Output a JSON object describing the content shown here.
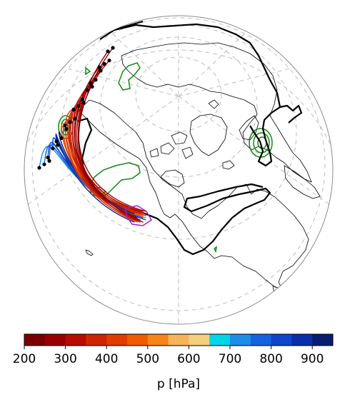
{
  "colorbar": {
    "label": "p [hPa]",
    "ticks": [
      200,
      300,
      400,
      500,
      600,
      700,
      800,
      900
    ],
    "range": [
      200,
      950
    ],
    "bins": [
      {
        "from": 200,
        "to": 250,
        "color": "#7a0000"
      },
      {
        "from": 250,
        "to": 300,
        "color": "#990000"
      },
      {
        "from": 300,
        "to": 350,
        "color": "#b80c00"
      },
      {
        "from": 350,
        "to": 400,
        "color": "#cf2400"
      },
      {
        "from": 400,
        "to": 450,
        "color": "#e03c00"
      },
      {
        "from": 450,
        "to": 500,
        "color": "#ef5a00"
      },
      {
        "from": 500,
        "to": 550,
        "color": "#f78418"
      },
      {
        "from": 550,
        "to": 600,
        "color": "#f5b45a"
      },
      {
        "from": 600,
        "to": 650,
        "color": "#f3cf7e"
      },
      {
        "from": 650,
        "to": 700,
        "color": "#00d5e6"
      },
      {
        "from": 700,
        "to": 750,
        "color": "#1c8ee8"
      },
      {
        "from": 750,
        "to": 800,
        "color": "#1464e0"
      },
      {
        "from": 800,
        "to": 850,
        "color": "#0f45c8"
      },
      {
        "from": 850,
        "to": 900,
        "color": "#0a2ea8"
      },
      {
        "from": 900,
        "to": 950,
        "color": "#071d70"
      }
    ]
  },
  "map_style": {
    "globe_outline": "#8c8c8c",
    "graticule": "#bdbdbd",
    "coastline": "#000000",
    "contour_black": "#000000",
    "contour_green": "#118a11",
    "contour_purple": "#a020c8",
    "start_marker": "#000000"
  }
}
